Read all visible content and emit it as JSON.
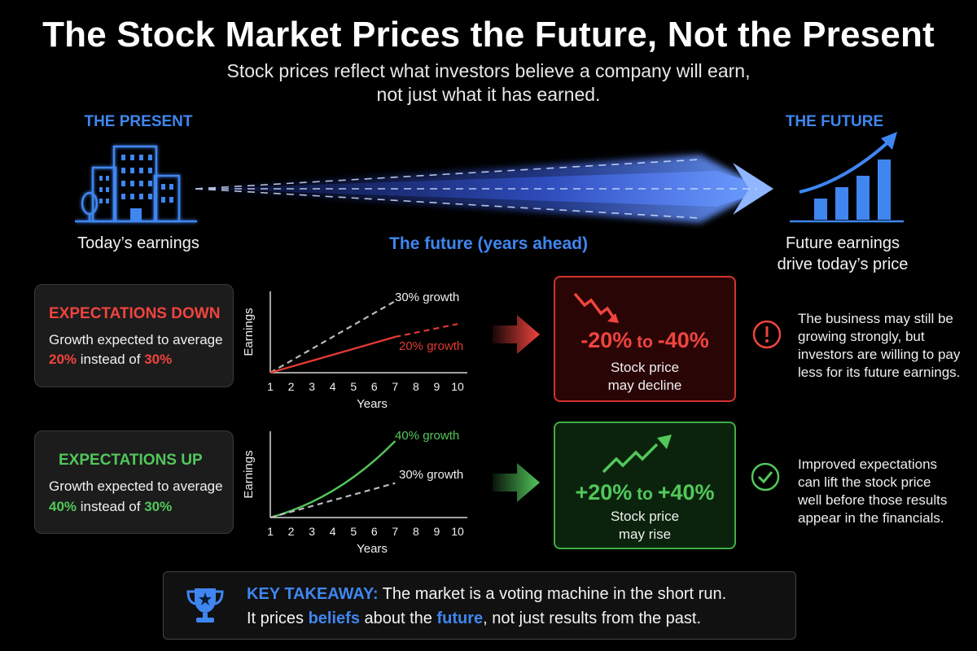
{
  "header": {
    "title": "The Stock Market Prices the Future, Not the Present",
    "subtitle_line1": "Stock prices reflect what investors believe a company will earn,",
    "subtitle_line2": "not just what it has earned."
  },
  "timeline": {
    "present_label": "THE PRESENT",
    "present_caption": "Today’s earnings",
    "middle_caption": "The future (years ahead)",
    "future_label": "THE FUTURE",
    "future_caption_line1": "Future earnings",
    "future_caption_line2": "drive today’s price"
  },
  "scenarios": [
    {
      "title": "EXPECTATIONS DOWN",
      "text_line1": "Growth expected to average",
      "new_rate": "20%",
      "mid_text": " instead of ",
      "old_rate": "30%",
      "color": "#f0443e",
      "result_from": "-20%",
      "result_to_word": " to ",
      "result_to": "-40%",
      "result_line1": "Stock price",
      "result_line2": "may decline",
      "note_lines": [
        "The business may still be",
        "growing strongly, but",
        "investors are willing to pay",
        "less for its future earnings."
      ],
      "icon": "exclamation-circle-icon"
    },
    {
      "title": "EXPECTATIONS UP",
      "text_line1": "Growth expected to average",
      "new_rate": "40%",
      "mid_text": " instead of ",
      "old_rate": "30%",
      "color": "#52c75a",
      "result_from": "+20%",
      "result_to_word": " to ",
      "result_to": "+40%",
      "result_line1": "Stock price",
      "result_line2": "may rise",
      "note_lines": [
        "Improved expectations",
        "can lift the stock price",
        "well before those results",
        "appear in the financials."
      ],
      "icon": "check-circle-icon"
    }
  ],
  "chart_data": [
    {
      "type": "line",
      "xlabel": "Years",
      "ylabel": "Earnings",
      "x": [
        1,
        2,
        3,
        4,
        5,
        6,
        7,
        8,
        9,
        10
      ],
      "xlim": [
        1,
        10
      ],
      "grid": false,
      "series": [
        {
          "name": "30% growth",
          "color": "#bbbbbb",
          "style": "dashed",
          "shape": "linear",
          "x": [
            1,
            7
          ],
          "values": [
            0,
            1
          ]
        },
        {
          "name": "20% growth",
          "color": "#e03a35",
          "style": "solid",
          "shape": "linear",
          "x": [
            1,
            7
          ],
          "values": [
            0,
            0.5
          ]
        },
        {
          "name": "20% growth projection",
          "color": "#e03a35",
          "style": "dashed",
          "shape": "linear",
          "x": [
            7,
            10
          ],
          "values": [
            0.5,
            0.68
          ]
        }
      ]
    },
    {
      "type": "line",
      "xlabel": "Years",
      "ylabel": "Earnings",
      "x": [
        1,
        2,
        3,
        4,
        5,
        6,
        7,
        8,
        9,
        10
      ],
      "xlim": [
        1,
        10
      ],
      "grid": false,
      "series": [
        {
          "name": "40% growth",
          "color": "#52c75a",
          "style": "solid",
          "shape": "curve",
          "x": [
            1,
            7
          ],
          "values": [
            0,
            1
          ]
        },
        {
          "name": "30% growth",
          "color": "#bbbbbb",
          "style": "dashed",
          "shape": "linear",
          "x": [
            1,
            7
          ],
          "values": [
            0,
            0.45
          ]
        }
      ]
    }
  ],
  "takeaway": {
    "label": "KEY TAKEAWAY:",
    "line1": " The market is a voting machine in the short run.",
    "line2_a": "It prices ",
    "line2_b": "beliefs",
    "line2_c": " about the ",
    "line2_d": "future",
    "line2_e": ", not just results from the past.",
    "icon": "trophy-icon"
  },
  "colors": {
    "accent_blue": "#3f86f0",
    "down_red": "#f0443e",
    "up_green": "#52c75a",
    "background": "#000000"
  }
}
